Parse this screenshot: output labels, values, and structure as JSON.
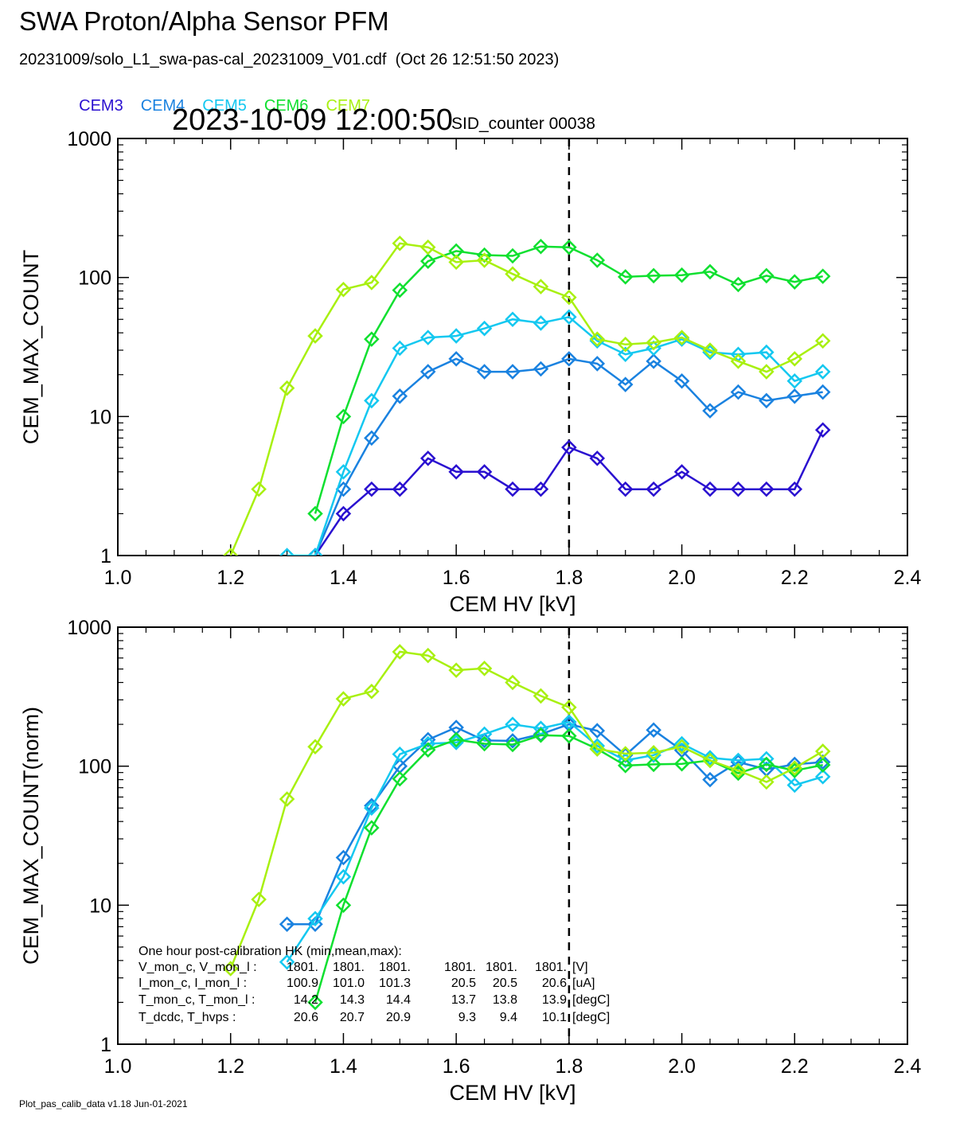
{
  "header": {
    "title": "SWA Proton/Alpha Sensor PFM",
    "file": "20231009/solo_L1_swa-pas-cal_20231009_V01.cdf  (Oct 26 12:51:50 2023)",
    "timestamp": "2023-10-09 12:00:50",
    "sid": "SID_counter 00038"
  },
  "footer": "Plot_pas_calib_data v1.18 Jun-01-2021",
  "colors": {
    "CEM3": "#2a10d0",
    "CEM4": "#1a82e0",
    "CEM5": "#14c8f0",
    "CEM6": "#10e030",
    "CEM7": "#a8f010"
  },
  "chart_data": [
    {
      "type": "line",
      "marker": "diamond",
      "xlabel": "CEM HV [kV]",
      "ylabel": "CEM_MAX_COUNT",
      "xlim": [
        1.0,
        2.4
      ],
      "ylim": [
        1,
        1000
      ],
      "yscale": "log",
      "xticks": [
        "1.0",
        "1.2",
        "1.4",
        "1.6",
        "1.8",
        "2.0",
        "2.2",
        "2.4"
      ],
      "yticks": [
        "1",
        "10",
        "100",
        "1000"
      ],
      "vline": 1.8,
      "series": [
        {
          "name": "CEM3",
          "x": [
            1.35,
            1.4,
            1.45,
            1.5,
            1.55,
            1.6,
            1.65,
            1.7,
            1.75,
            1.8,
            1.85,
            1.9,
            1.95,
            2.0,
            2.05,
            2.1,
            2.15,
            2.2,
            2.25
          ],
          "y": [
            1,
            2,
            3,
            3,
            5,
            4,
            4,
            3,
            3,
            6,
            5,
            3,
            3,
            4,
            3,
            3,
            3,
            3,
            8
          ]
        },
        {
          "name": "CEM4",
          "x": [
            1.35,
            1.4,
            1.45,
            1.5,
            1.55,
            1.6,
            1.65,
            1.7,
            1.75,
            1.8,
            1.85,
            1.9,
            1.95,
            2.0,
            2.05,
            2.1,
            2.15,
            2.2,
            2.25
          ],
          "y": [
            1,
            3,
            7,
            14,
            21,
            26,
            21,
            21,
            22,
            26,
            24,
            17,
            25,
            18,
            11,
            15,
            13,
            14,
            15
          ]
        },
        {
          "name": "CEM5",
          "x": [
            1.3,
            1.35,
            1.4,
            1.45,
            1.5,
            1.55,
            1.6,
            1.65,
            1.7,
            1.75,
            1.8,
            1.85,
            1.9,
            1.95,
            2.0,
            2.05,
            2.1,
            2.15,
            2.2,
            2.25
          ],
          "y": [
            1,
            1,
            4,
            13,
            31,
            37,
            38,
            43,
            50,
            47,
            52,
            35,
            28,
            31,
            36,
            29,
            28,
            29,
            18,
            21
          ]
        },
        {
          "name": "CEM6",
          "x": [
            1.35,
            1.4,
            1.45,
            1.5,
            1.55,
            1.6,
            1.65,
            1.7,
            1.75,
            1.8,
            1.85,
            1.9,
            1.95,
            2.0,
            2.05,
            2.1,
            2.15,
            2.2,
            2.25
          ],
          "y": [
            2,
            10,
            36,
            81,
            131,
            155,
            145,
            143,
            167,
            165,
            133,
            101,
            103,
            104,
            110,
            89,
            103,
            93,
            102
          ]
        },
        {
          "name": "CEM7",
          "x": [
            1.2,
            1.25,
            1.3,
            1.35,
            1.4,
            1.45,
            1.5,
            1.55,
            1.6,
            1.65,
            1.7,
            1.75,
            1.8,
            1.85,
            1.9,
            1.95,
            2.0,
            2.05,
            2.1,
            2.15,
            2.2,
            2.25
          ],
          "y": [
            1,
            3,
            16,
            38,
            82,
            92,
            176,
            165,
            129,
            133,
            106,
            86,
            72,
            36,
            33,
            34,
            37,
            30,
            25,
            21,
            26,
            35
          ]
        }
      ]
    },
    {
      "type": "line",
      "marker": "diamond",
      "xlabel": "CEM HV [kV]",
      "ylabel": "CEM_MAX_COUNT(norm)",
      "xlim": [
        1.0,
        2.4
      ],
      "ylim": [
        1,
        1000
      ],
      "yscale": "log",
      "xticks": [
        "1.0",
        "1.2",
        "1.4",
        "1.6",
        "1.8",
        "2.0",
        "2.2",
        "2.4"
      ],
      "yticks": [
        "1",
        "10",
        "100",
        "1000"
      ],
      "vline": 1.8,
      "series": [
        {
          "name": "CEM4",
          "x": [
            1.3,
            1.35,
            1.4,
            1.45,
            1.5,
            1.55,
            1.6,
            1.65,
            1.7,
            1.75,
            1.8,
            1.85,
            1.9,
            1.95,
            2.0,
            2.05,
            2.1,
            2.15,
            2.2,
            2.25
          ],
          "y": [
            7.3,
            7.3,
            22,
            52,
            100,
            155,
            190,
            153,
            152,
            170,
            200,
            180,
            120,
            182,
            130,
            80,
            107,
            95,
            103,
            107
          ]
        },
        {
          "name": "CEM5",
          "x": [
            1.3,
            1.35,
            1.4,
            1.45,
            1.5,
            1.55,
            1.6,
            1.65,
            1.7,
            1.75,
            1.8,
            1.85,
            1.9,
            1.95,
            2.0,
            2.05,
            2.1,
            2.15,
            2.2,
            2.25
          ],
          "y": [
            3.9,
            8,
            16,
            50,
            122,
            145,
            148,
            170,
            200,
            187,
            208,
            140,
            110,
            120,
            145,
            115,
            110,
            113,
            73,
            84
          ]
        },
        {
          "name": "CEM6",
          "x": [
            1.35,
            1.4,
            1.45,
            1.5,
            1.55,
            1.6,
            1.65,
            1.7,
            1.75,
            1.8,
            1.85,
            1.9,
            1.95,
            2.0,
            2.05,
            2.1,
            2.15,
            2.2,
            2.25
          ],
          "y": [
            2,
            10,
            36,
            81,
            131,
            155,
            145,
            143,
            167,
            165,
            133,
            101,
            103,
            104,
            110,
            89,
            103,
            93,
            102
          ]
        },
        {
          "name": "CEM7",
          "x": [
            1.2,
            1.25,
            1.3,
            1.35,
            1.4,
            1.45,
            1.5,
            1.55,
            1.6,
            1.65,
            1.7,
            1.75,
            1.8,
            1.85,
            1.9,
            1.95,
            2.0,
            2.05,
            2.1,
            2.15,
            2.2,
            2.25
          ],
          "y": [
            3.5,
            11,
            58,
            138,
            305,
            345,
            665,
            625,
            490,
            505,
            400,
            320,
            265,
            133,
            123,
            125,
            138,
            110,
            93,
            77,
            97,
            128
          ]
        }
      ],
      "hk_table": {
        "title": "One hour post-calibration HK (min,mean,max):",
        "rows": [
          {
            "label": "V_mon_c, V_mon_l :",
            "c": [
              "1801.",
              "1801.",
              "1801."
            ],
            "l": [
              "1801.",
              "1801.",
              "1801."
            ],
            "unit": "[V]"
          },
          {
            "label": "I_mon_c,  I_mon_l :",
            "c": [
              "100.9",
              "101.0",
              "101.3"
            ],
            "l": [
              "20.5",
              "20.5",
              "20.6"
            ],
            "unit": "[uA]"
          },
          {
            "label": "T_mon_c, T_mon_l :",
            "c": [
              "14.2",
              "14.3",
              "14.4"
            ],
            "l": [
              "13.7",
              "13.8",
              "13.9"
            ],
            "unit": "[degC]"
          },
          {
            "label": "T_dcdc,    T_hvps :",
            "c": [
              "20.6",
              "20.7",
              "20.9"
            ],
            "l": [
              "9.3",
              "9.4",
              "10.1"
            ],
            "unit": "[degC]"
          }
        ]
      }
    }
  ]
}
